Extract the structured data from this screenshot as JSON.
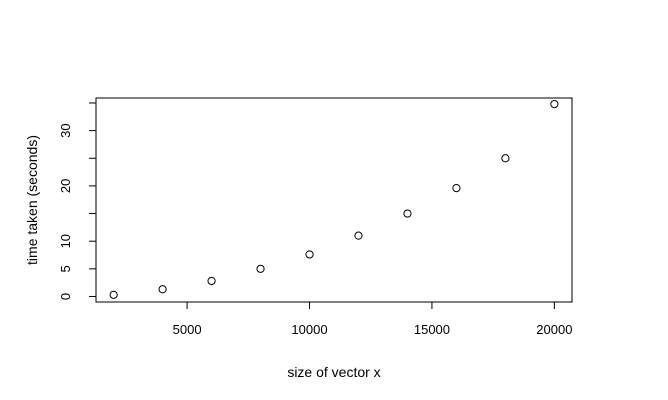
{
  "chart_data": {
    "type": "scatter",
    "title": "",
    "xlabel": "size of vector x",
    "ylabel": "time taken (seconds)",
    "xlim": [
      1280,
      20720
    ],
    "ylim": [
      -1.0,
      35.9
    ],
    "x_ticks": [
      5000,
      10000,
      15000,
      20000
    ],
    "x_tick_labels": [
      "5000",
      "10000",
      "15000",
      "20000"
    ],
    "y_ticks": [
      0,
      5,
      10,
      15,
      20,
      25,
      30,
      35
    ],
    "y_tick_labels": [
      "0",
      "5",
      "10",
      "",
      "20",
      "",
      "30",
      ""
    ],
    "grid": false,
    "legend": "none",
    "marker": "open-circle",
    "colors": {
      "point": "#000000",
      "axis": "#000000",
      "background": "#ffffff"
    },
    "x": [
      2000,
      4000,
      6000,
      8000,
      10000,
      12000,
      14000,
      16000,
      18000,
      20000
    ],
    "y": [
      0.3,
      1.3,
      2.8,
      5.0,
      7.6,
      11.0,
      15.0,
      19.6,
      25.0,
      34.8
    ]
  }
}
